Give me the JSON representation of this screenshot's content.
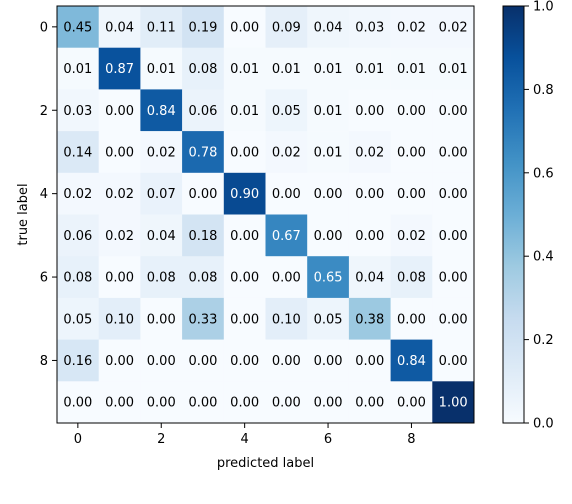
{
  "chart_data": {
    "type": "heatmap",
    "title": "",
    "xlabel": "predicted label",
    "ylabel": "true label",
    "x_ticks": [
      "0",
      "2",
      "4",
      "6",
      "8"
    ],
    "y_ticks": [
      "0",
      "2",
      "4",
      "6",
      "8"
    ],
    "colorbar": {
      "min": 0.0,
      "max": 1.0,
      "ticks": [
        "0.0",
        "0.2",
        "0.4",
        "0.6",
        "0.8",
        "1.0"
      ],
      "colormap": "Blues"
    },
    "matrix": [
      [
        "0.45",
        "0.04",
        "0.11",
        "0.19",
        "0.00",
        "0.09",
        "0.04",
        "0.03",
        "0.02",
        "0.02"
      ],
      [
        "0.01",
        "0.87",
        "0.01",
        "0.08",
        "0.01",
        "0.01",
        "0.01",
        "0.01",
        "0.01",
        "0.01"
      ],
      [
        "0.03",
        "0.00",
        "0.84",
        "0.06",
        "0.01",
        "0.05",
        "0.01",
        "0.00",
        "0.00",
        "0.00"
      ],
      [
        "0.14",
        "0.00",
        "0.02",
        "0.78",
        "0.00",
        "0.02",
        "0.01",
        "0.02",
        "0.00",
        "0.00"
      ],
      [
        "0.02",
        "0.02",
        "0.07",
        "0.00",
        "0.90",
        "0.00",
        "0.00",
        "0.00",
        "0.00",
        "0.00"
      ],
      [
        "0.06",
        "0.02",
        "0.04",
        "0.18",
        "0.00",
        "0.67",
        "0.00",
        "0.00",
        "0.02",
        "0.00"
      ],
      [
        "0.08",
        "0.00",
        "0.08",
        "0.08",
        "0.00",
        "0.00",
        "0.65",
        "0.04",
        "0.08",
        "0.00"
      ],
      [
        "0.05",
        "0.10",
        "0.00",
        "0.33",
        "0.00",
        "0.10",
        "0.05",
        "0.38",
        "0.00",
        "0.00"
      ],
      [
        "0.16",
        "0.00",
        "0.00",
        "0.00",
        "0.00",
        "0.00",
        "0.00",
        "0.00",
        "0.84",
        "0.00"
      ],
      [
        "0.00",
        "0.00",
        "0.00",
        "0.00",
        "0.00",
        "0.00",
        "0.00",
        "0.00",
        "0.00",
        "1.00"
      ]
    ]
  }
}
